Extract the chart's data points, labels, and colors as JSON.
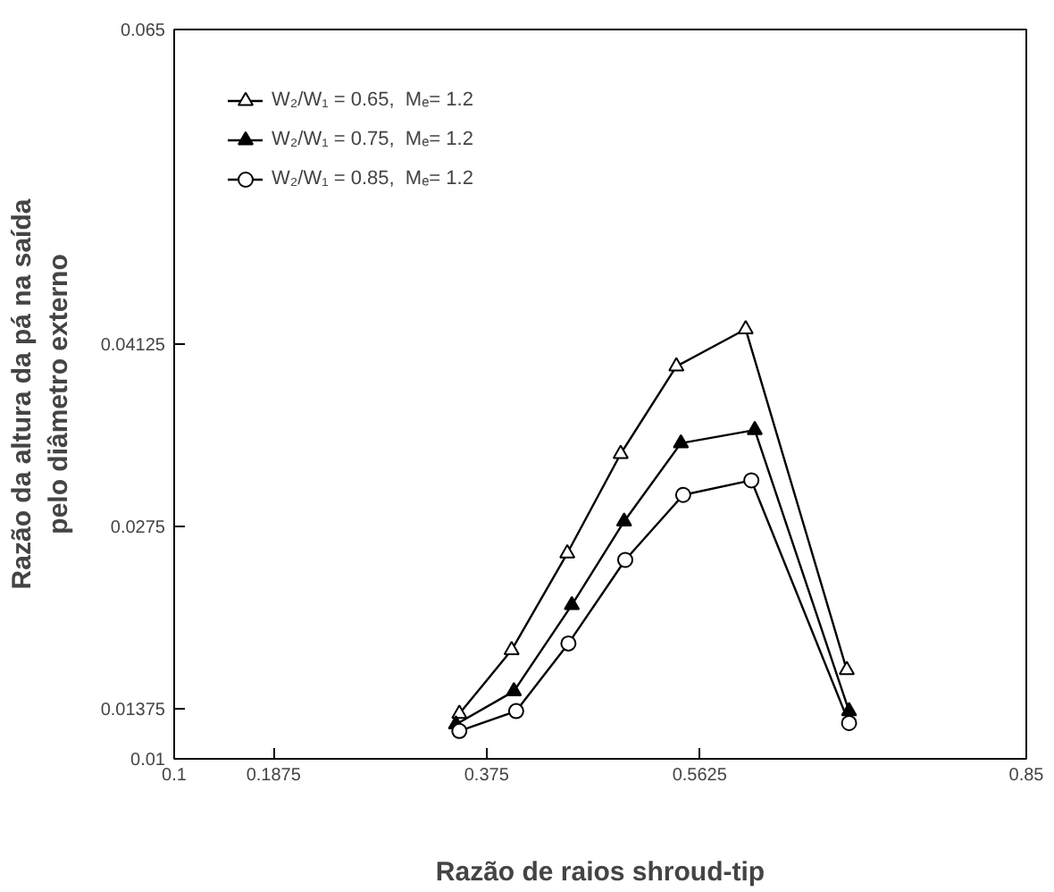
{
  "chart_data": {
    "type": "line",
    "xlabel": "Razão de raios shroud-tip",
    "ylabel": "Razão da altura da pá na saída\npelo diâmetro externo",
    "xlim": [
      0.1,
      0.85
    ],
    "xticks": [
      0.1,
      0.1875,
      0.375,
      0.5625,
      0.85
    ],
    "ylim": [
      0.01,
      0.065
    ],
    "yticks": [
      0.01,
      0.01375,
      0.0275,
      0.04125,
      0.065
    ],
    "grid": false,
    "legend": "top left",
    "marker": "triangle",
    "series": [
      {
        "name": "W₂/W₁ = 0.65,  Mₑ= 1.2",
        "color": "#000000",
        "x": [
          0.351,
          0.397,
          0.446,
          0.493,
          0.542,
          0.603,
          0.692
        ],
        "values": [
          0.0134,
          0.0182,
          0.0255,
          0.033,
          0.0396,
          0.0424,
          0.0167
        ]
      },
      {
        "name": "W₂/W₁ = 0.75,  Mₑ= 1.2",
        "color": "#000000",
        "x": [
          0.348,
          0.399,
          0.45,
          0.496,
          0.546,
          0.611,
          0.694
        ],
        "values": [
          0.0126,
          0.0151,
          0.0216,
          0.0279,
          0.0338,
          0.0348,
          0.0136
        ]
      },
      {
        "name": "W₂/W₁ = 0.85,  Mₑ= 1.2",
        "color": "#000000",
        "marker": "circle",
        "x": [
          0.351,
          0.401,
          0.447,
          0.497,
          0.548,
          0.608,
          0.694
        ],
        "values": [
          0.0121,
          0.0136,
          0.0187,
          0.025,
          0.0299,
          0.031,
          0.0127
        ]
      }
    ]
  }
}
